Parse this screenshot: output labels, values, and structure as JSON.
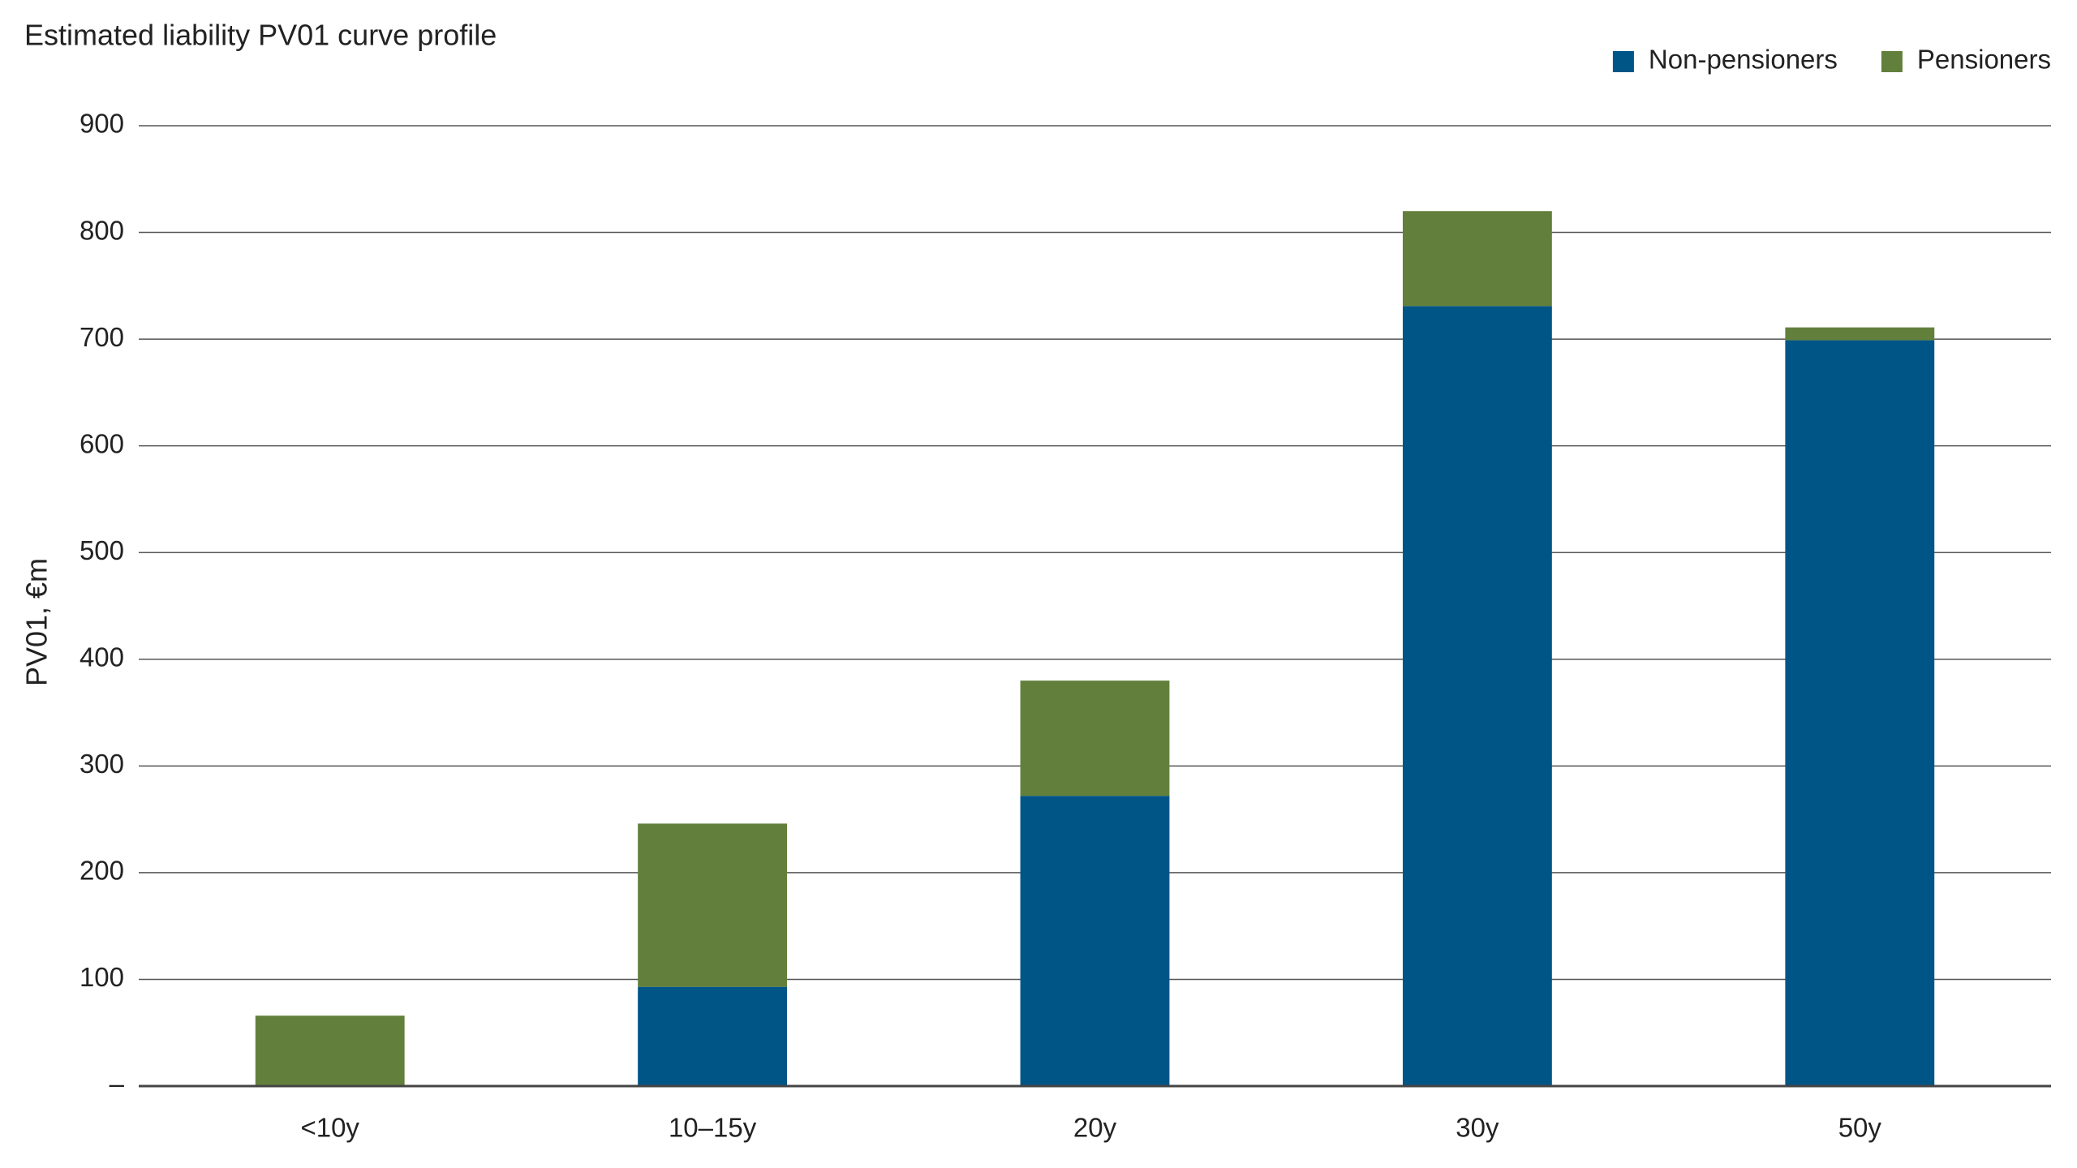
{
  "chart_data": {
    "type": "stacked_bar",
    "title": "Estimated liability PV01 curve profile",
    "y_label": "PV01, €m",
    "categories": [
      "<10y",
      "10–15y",
      "20y",
      "30y",
      "50y"
    ],
    "series": [
      {
        "name": "Non-pensioners",
        "color": "#005587",
        "values": [
          0,
          93,
          272,
          731,
          699
        ]
      },
      {
        "name": "Pensioners",
        "color": "#62803b",
        "values": [
          66,
          153,
          108,
          89,
          12
        ]
      }
    ],
    "ylim": [
      0,
      900
    ],
    "yticks": [
      {
        "value": 0,
        "label": "–"
      },
      100,
      200,
      300,
      400,
      500,
      600,
      700,
      800,
      900
    ],
    "grid": true,
    "legend": "top-right"
  }
}
